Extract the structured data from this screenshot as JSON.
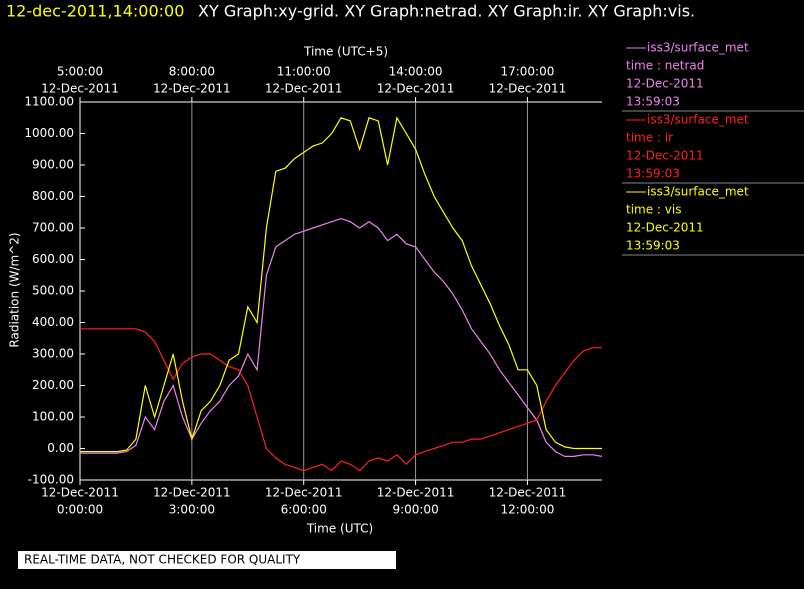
{
  "chart_data": {
    "type": "line",
    "header": {
      "timestamp": "12-dec-2011,14:00:00",
      "graphs": "XY Graph:xy-grid.  XY Graph:netrad.  XY Graph:ir.  XY Graph:vis."
    },
    "top_axis_label": "Time (UTC+5)",
    "x_label": "Time (UTC)",
    "y_label": "Radiation (W/m^2)",
    "footer": "REAL-TIME DATA, NOT CHECKED FOR QUALITY",
    "xlim": [
      0,
      14
    ],
    "ylim": [
      -100,
      1100
    ],
    "grid": true,
    "xticks": [
      {
        "value": 0,
        "label": "0:00:00",
        "date": "12-Dec-2011"
      },
      {
        "value": 3,
        "label": "3:00:00",
        "date": "12-Dec-2011"
      },
      {
        "value": 6,
        "label": "6:00:00",
        "date": "12-Dec-2011"
      },
      {
        "value": 9,
        "label": "9:00:00",
        "date": "12-Dec-2011"
      },
      {
        "value": 12,
        "label": "12:00:00",
        "date": "12-Dec-2011"
      }
    ],
    "top_xticks": [
      {
        "value": 0,
        "label": "5:00:00",
        "date": "12-Dec-2011"
      },
      {
        "value": 3,
        "label": "8:00:00",
        "date": "12-Dec-2011"
      },
      {
        "value": 6,
        "label": "11:00:00",
        "date": "12-Dec-2011"
      },
      {
        "value": 9,
        "label": "14:00:00",
        "date": "12-Dec-2011"
      },
      {
        "value": 12,
        "label": "17:00:00",
        "date": "12-Dec-2011"
      }
    ],
    "yticks": [
      {
        "value": -100,
        "label": "-100.00"
      },
      {
        "value": 0,
        "label": "0.00"
      },
      {
        "value": 100,
        "label": "100.00"
      },
      {
        "value": 200,
        "label": "200.00"
      },
      {
        "value": 300,
        "label": "300.00"
      },
      {
        "value": 400,
        "label": "400.00"
      },
      {
        "value": 500,
        "label": "500.00"
      },
      {
        "value": 600,
        "label": "600.00"
      },
      {
        "value": 700,
        "label": "700.00"
      },
      {
        "value": 800,
        "label": "800.00"
      },
      {
        "value": 900,
        "label": "900.00"
      },
      {
        "value": 1000,
        "label": "1000.00"
      },
      {
        "value": 1100,
        "label": "1100.00"
      }
    ],
    "x": [
      0,
      0.25,
      0.5,
      0.75,
      1,
      1.25,
      1.5,
      1.75,
      2,
      2.25,
      2.5,
      2.75,
      3,
      3.25,
      3.5,
      3.75,
      4,
      4.25,
      4.5,
      4.75,
      5,
      5.25,
      5.5,
      5.75,
      6,
      6.25,
      6.5,
      6.75,
      7,
      7.25,
      7.5,
      7.75,
      8,
      8.25,
      8.5,
      8.75,
      9,
      9.25,
      9.5,
      9.75,
      10,
      10.25,
      10.5,
      10.75,
      11,
      11.25,
      11.5,
      11.75,
      12,
      12.25,
      12.5,
      12.75,
      13,
      13.25,
      13.5,
      13.75,
      14
    ],
    "series": [
      {
        "name": "time : netrad",
        "source": "iss3/surface_met",
        "date": "12-Dec-2011",
        "time": "13:59:03",
        "color": "#ee82ee",
        "values": [
          -15,
          -15,
          -15,
          -15,
          -15,
          -10,
          10,
          100,
          60,
          150,
          200,
          100,
          30,
          80,
          120,
          150,
          200,
          230,
          300,
          250,
          550,
          640,
          660,
          680,
          690,
          700,
          710,
          720,
          730,
          720,
          700,
          720,
          700,
          660,
          680,
          650,
          640,
          600,
          560,
          530,
          490,
          440,
          380,
          340,
          300,
          250,
          210,
          170,
          130,
          90,
          20,
          -10,
          -25,
          -25,
          -20,
          -20,
          -25
        ]
      },
      {
        "name": "time : ir",
        "source": "iss3/surface_met",
        "date": "12-Dec-2011",
        "time": "13:59:03",
        "color": "#ff2020",
        "values": [
          380,
          380,
          380,
          380,
          380,
          380,
          380,
          370,
          340,
          280,
          220,
          270,
          290,
          300,
          300,
          280,
          260,
          250,
          200,
          100,
          0,
          -30,
          -50,
          -60,
          -70,
          -60,
          -50,
          -70,
          -40,
          -50,
          -70,
          -40,
          -30,
          -40,
          -20,
          -50,
          -20,
          -10,
          0,
          10,
          20,
          20,
          30,
          30,
          40,
          50,
          60,
          70,
          80,
          90,
          150,
          200,
          240,
          280,
          310,
          320,
          320
        ]
      },
      {
        "name": "time : vis",
        "source": "iss3/surface_met",
        "date": "12-Dec-2011",
        "time": "13:59:03",
        "color": "#ffff00",
        "values": [
          -10,
          -10,
          -10,
          -10,
          -10,
          -5,
          30,
          200,
          100,
          200,
          300,
          150,
          30,
          120,
          150,
          200,
          280,
          300,
          450,
          400,
          700,
          880,
          890,
          920,
          940,
          960,
          970,
          1000,
          1050,
          1040,
          950,
          1050,
          1040,
          900,
          1050,
          1000,
          950,
          870,
          800,
          750,
          700,
          660,
          580,
          520,
          460,
          390,
          330,
          250,
          250,
          200,
          60,
          20,
          5,
          0,
          0,
          0,
          0
        ]
      }
    ]
  }
}
